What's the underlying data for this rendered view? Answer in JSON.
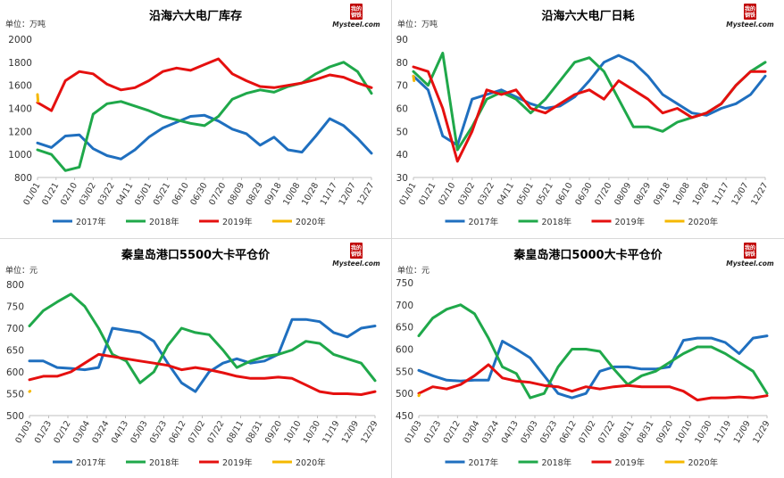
{
  "logo": {
    "top": "我的钢铁",
    "bottom": "Mysteel.com"
  },
  "chart_data": [
    {
      "type": "line",
      "title": "沿海六大电厂库存",
      "unit": "单位：万吨",
      "ylim": [
        800,
        2000
      ],
      "yticks": [
        "800",
        "1000",
        "1200",
        "1400",
        "1600",
        "1800",
        "2000"
      ],
      "xticks": [
        "01/01",
        "01/21",
        "02/10",
        "03/02",
        "03/22",
        "04/11",
        "05/01",
        "05/21",
        "06/10",
        "06/30",
        "07/20",
        "08/09",
        "08/29",
        "09/18",
        "10/08",
        "10/28",
        "11/17",
        "12/07",
        "12/27"
      ],
      "series": [
        {
          "name": "2017年",
          "color": "#1f6fbf",
          "values": [
            1100,
            1060,
            1160,
            1170,
            1050,
            990,
            960,
            1040,
            1150,
            1230,
            1280,
            1330,
            1340,
            1290,
            1220,
            1180,
            1080,
            1150,
            1040,
            1020,
            1160,
            1310,
            1250,
            1140,
            1010
          ]
        },
        {
          "name": "2018年",
          "color": "#1fa84a",
          "values": [
            1040,
            1000,
            860,
            890,
            1350,
            1440,
            1460,
            1420,
            1380,
            1330,
            1300,
            1270,
            1250,
            1330,
            1480,
            1530,
            1560,
            1540,
            1590,
            1620,
            1700,
            1760,
            1800,
            1720,
            1530
          ]
        },
        {
          "name": "2019年",
          "color": "#e5100f",
          "values": [
            1450,
            1380,
            1640,
            1720,
            1700,
            1610,
            1560,
            1580,
            1640,
            1720,
            1750,
            1730,
            1780,
            1830,
            1700,
            1640,
            1590,
            1580,
            1600,
            1620,
            1650,
            1690,
            1670,
            1620,
            1580
          ]
        },
        {
          "name": "2020年",
          "color": "#f5b800",
          "values": [
            1520,
            1460
          ]
        }
      ]
    },
    {
      "type": "line",
      "title": "沿海六大电厂日耗",
      "unit": "单位：万吨",
      "ylim": [
        30,
        90
      ],
      "yticks": [
        "30",
        "40",
        "50",
        "60",
        "70",
        "80",
        "90"
      ],
      "xticks": [
        "01/01",
        "01/21",
        "02/10",
        "03/02",
        "03/22",
        "04/11",
        "05/01",
        "05/21",
        "06/10",
        "06/30",
        "07/20",
        "08/09",
        "08/29",
        "09/18",
        "10/08",
        "10/28",
        "11/17",
        "12/07",
        "12/27"
      ],
      "series": [
        {
          "name": "2017年",
          "color": "#1f6fbf",
          "values": [
            74,
            68,
            48,
            44,
            64,
            66,
            68,
            65,
            62,
            60,
            61,
            65,
            72,
            80,
            83,
            80,
            74,
            66,
            62,
            58,
            57,
            60,
            62,
            66,
            74
          ]
        },
        {
          "name": "2018年",
          "color": "#1fa84a",
          "values": [
            76,
            70,
            84,
            42,
            52,
            64,
            67,
            64,
            58,
            64,
            72,
            80,
            82,
            76,
            64,
            52,
            52,
            50,
            54,
            56,
            58,
            62,
            70,
            76,
            80
          ]
        },
        {
          "name": "2019年",
          "color": "#e5100f",
          "values": [
            78,
            76,
            60,
            37,
            50,
            68,
            66,
            68,
            60,
            58,
            62,
            66,
            68,
            64,
            72,
            68,
            64,
            58,
            60,
            56,
            58,
            62,
            70,
            76,
            76
          ]
        },
        {
          "name": "2020年",
          "color": "#f5b800",
          "values": [
            74,
            72
          ]
        }
      ]
    },
    {
      "type": "line",
      "title": "秦皇岛港口5500大卡平仓价",
      "unit": "单位：元",
      "ylim": [
        500,
        800
      ],
      "yticks": [
        "500",
        "550",
        "600",
        "650",
        "700",
        "750",
        "800"
      ],
      "xticks": [
        "01/03",
        "01/23",
        "02/12",
        "03/04",
        "03/24",
        "04/13",
        "05/03",
        "05/23",
        "06/12",
        "07/02",
        "07/22",
        "08/11",
        "08/31",
        "09/20",
        "10/10",
        "10/30",
        "11/19",
        "12/09",
        "12/29"
      ],
      "series": [
        {
          "name": "2017年",
          "color": "#1f6fbf",
          "values": [
            625,
            625,
            610,
            608,
            605,
            610,
            700,
            695,
            690,
            670,
            620,
            575,
            555,
            600,
            620,
            630,
            620,
            625,
            640,
            720,
            720,
            715,
            690,
            680,
            700,
            705
          ]
        },
        {
          "name": "2018年",
          "color": "#1fa84a",
          "values": [
            705,
            740,
            760,
            778,
            750,
            700,
            640,
            625,
            575,
            600,
            660,
            700,
            690,
            685,
            650,
            610,
            625,
            635,
            640,
            650,
            670,
            665,
            640,
            630,
            620,
            580
          ]
        },
        {
          "name": "2019年",
          "color": "#e5100f",
          "values": [
            582,
            590,
            590,
            600,
            620,
            640,
            635,
            630,
            625,
            620,
            615,
            605,
            610,
            605,
            598,
            590,
            585,
            585,
            588,
            585,
            570,
            555,
            550,
            550,
            548,
            555
          ]
        },
        {
          "name": "2020年",
          "color": "#f5b800",
          "values": [
            555,
            556
          ]
        }
      ]
    },
    {
      "type": "line",
      "title": "秦皇岛港口5000大卡平仓价",
      "unit": "单位：元",
      "ylim": [
        450,
        750
      ],
      "yticks": [
        "450",
        "500",
        "550",
        "600",
        "650",
        "700",
        "750"
      ],
      "xticks": [
        "01/03",
        "01/23",
        "02/12",
        "03/04",
        "03/24",
        "04/13",
        "05/03",
        "05/23",
        "06/12",
        "07/02",
        "07/22",
        "08/11",
        "08/31",
        "09/20",
        "10/10",
        "10/30",
        "11/19",
        "12/09",
        "12/29"
      ],
      "series": [
        {
          "name": "2017年",
          "color": "#1f6fbf",
          "values": [
            552,
            540,
            530,
            528,
            530,
            530,
            618,
            600,
            580,
            540,
            500,
            490,
            500,
            550,
            560,
            560,
            555,
            555,
            560,
            620,
            625,
            625,
            615,
            590,
            625,
            630
          ]
        },
        {
          "name": "2018年",
          "color": "#1fa84a",
          "values": [
            630,
            670,
            690,
            700,
            680,
            625,
            560,
            545,
            490,
            500,
            560,
            600,
            600,
            595,
            555,
            520,
            540,
            550,
            570,
            590,
            605,
            605,
            590,
            570,
            550,
            500
          ]
        },
        {
          "name": "2019年",
          "color": "#e5100f",
          "values": [
            500,
            515,
            510,
            520,
            540,
            565,
            535,
            528,
            525,
            518,
            515,
            505,
            515,
            510,
            515,
            518,
            515,
            515,
            515,
            505,
            485,
            490,
            490,
            492,
            490,
            495
          ]
        },
        {
          "name": "2020年",
          "color": "#f5b800",
          "values": [
            495,
            497
          ]
        }
      ]
    }
  ]
}
